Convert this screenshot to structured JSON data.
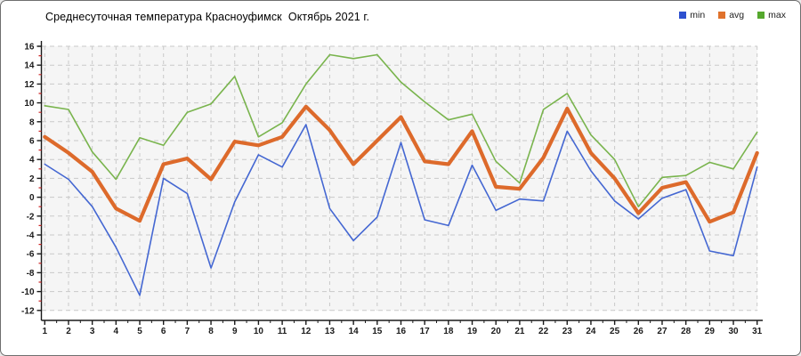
{
  "header": {
    "title": "Среднесуточная температура Красноуфимск  Октябрь 2021 г."
  },
  "legend": {
    "items": [
      {
        "label": "min",
        "color": "#2d50cf"
      },
      {
        "label": "avg",
        "color": "#e0722c"
      },
      {
        "label": "max",
        "color": "#55a82d"
      }
    ]
  },
  "chart_data": {
    "type": "line",
    "title": "Среднесуточная температура Красноуфимск  Октябрь 2021 г.",
    "xlabel": "",
    "ylabel": "",
    "x": [
      1,
      2,
      3,
      4,
      5,
      6,
      7,
      8,
      9,
      10,
      11,
      12,
      13,
      14,
      15,
      16,
      17,
      18,
      19,
      20,
      21,
      22,
      23,
      24,
      25,
      26,
      27,
      28,
      29,
      30,
      31
    ],
    "series": [
      {
        "name": "min",
        "color": "#4467d2",
        "width": 1.6,
        "values": [
          3.5,
          1.9,
          -1.0,
          -5.3,
          -10.4,
          2.0,
          0.4,
          -7.5,
          -0.5,
          4.5,
          3.2,
          7.7,
          -1.2,
          -4.6,
          -2.1,
          5.8,
          -2.4,
          -3.0,
          3.4,
          -1.4,
          -0.2,
          -0.4,
          7.0,
          2.8,
          -0.4,
          -2.3,
          -0.1,
          0.8,
          -5.7,
          -6.2,
          3.2
        ]
      },
      {
        "name": "avg",
        "color": "#dd6a2b",
        "width": 4.2,
        "values": [
          6.4,
          4.7,
          2.7,
          -1.2,
          -2.5,
          3.5,
          4.1,
          1.9,
          5.9,
          5.5,
          6.4,
          9.6,
          7.1,
          3.5,
          6.0,
          8.5,
          3.8,
          3.5,
          7.0,
          1.1,
          0.9,
          4.2,
          9.4,
          4.7,
          2.0,
          -1.7,
          1.0,
          1.6,
          -2.6,
          -1.6,
          4.7
        ]
      },
      {
        "name": "max",
        "color": "#79b44d",
        "width": 1.6,
        "values": [
          9.7,
          9.3,
          4.8,
          1.9,
          6.3,
          5.5,
          9.0,
          9.9,
          12.8,
          6.4,
          7.9,
          12.0,
          15.1,
          14.7,
          15.1,
          12.2,
          10.1,
          8.2,
          8.8,
          3.8,
          1.5,
          9.3,
          11.0,
          6.6,
          4.0,
          -1.0,
          2.1,
          2.3,
          3.7,
          3.0,
          6.9
        ]
      }
    ],
    "ylim": [
      -12,
      16
    ],
    "y_ticks": [
      16,
      14,
      12,
      10,
      8,
      6,
      4,
      2,
      0,
      -2,
      -4,
      -6,
      -8,
      -10,
      -12
    ],
    "x_ticks": [
      1,
      2,
      3,
      4,
      5,
      6,
      7,
      8,
      9,
      10,
      11,
      12,
      13,
      14,
      15,
      16,
      17,
      18,
      19,
      20,
      21,
      22,
      23,
      24,
      25,
      26,
      27,
      28,
      29,
      30,
      31
    ],
    "grid": true,
    "legend_position": "top-right",
    "colors": {
      "plot_bg": "#f5f5f5",
      "grid": "#c9c9c9",
      "axis": "#1a1a1a",
      "minor_tick": "#cc2222",
      "tick_label": "#1a1a1a"
    }
  }
}
